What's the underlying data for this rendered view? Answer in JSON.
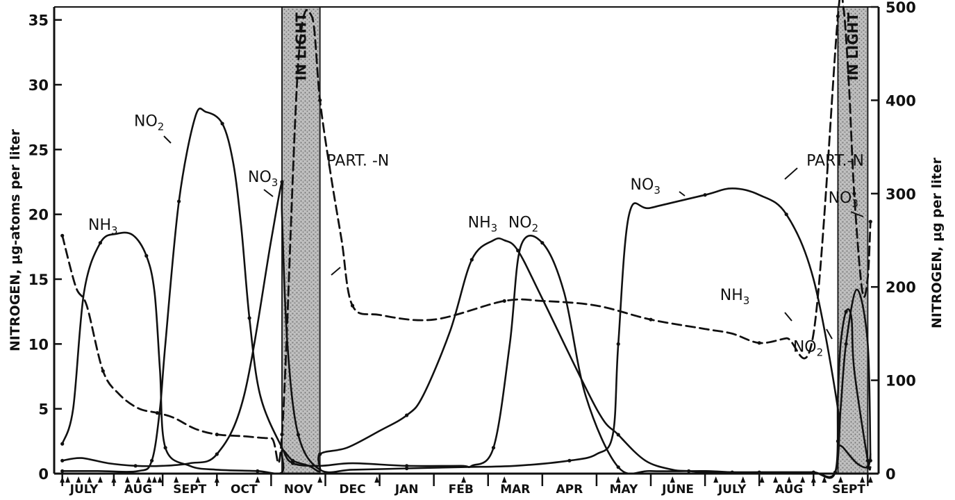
{
  "chart_data": {
    "type": "line",
    "title": "",
    "ylabel_left": "NITROGEN, μg-atoms per liter",
    "ylabel_right": "NITROGEN, μg per liter",
    "ylim_left": [
      0,
      36
    ],
    "ylim_right": [
      0,
      500
    ],
    "yticks_left": [
      0,
      5,
      10,
      15,
      20,
      25,
      30,
      35
    ],
    "yticks_right": [
      0,
      100,
      200,
      300,
      400,
      500
    ],
    "x_range": [
      0,
      15.2
    ],
    "x_month_ticks": [
      0.15,
      1.1,
      2.0,
      3.0,
      4.0,
      5.0,
      6.0,
      7.0,
      8.0,
      9.0,
      10.0,
      11.0,
      12.0,
      13.0,
      14.0,
      15.0
    ],
    "x_months": [
      {
        "label": "JULY",
        "x": 0.55
      },
      {
        "label": "AUG",
        "x": 1.55
      },
      {
        "label": "SEPT",
        "x": 2.5
      },
      {
        "label": "OCT",
        "x": 3.5
      },
      {
        "label": "NOV",
        "x": 4.5
      },
      {
        "label": "DEC",
        "x": 5.5
      },
      {
        "label": "JAN",
        "x": 6.5
      },
      {
        "label": "FEB",
        "x": 7.5
      },
      {
        "label": "MAR",
        "x": 8.5
      },
      {
        "label": "APR",
        "x": 9.5
      },
      {
        "label": "MAY",
        "x": 10.5
      },
      {
        "label": "JUNE",
        "x": 11.5
      },
      {
        "label": "JULY",
        "x": 12.5
      },
      {
        "label": "AUG",
        "x": 13.55
      },
      {
        "label": "SEPT",
        "x": 14.65
      }
    ],
    "sample_markers": [
      0.15,
      0.25,
      0.45,
      0.65,
      0.85,
      1.1,
      1.35,
      1.55,
      1.75,
      1.85,
      1.95,
      2.25,
      2.65,
      3.0,
      3.75,
      4.9,
      5.95,
      7.55,
      8.3,
      10.4,
      11.4,
      12.2,
      12.7,
      13.05,
      13.3,
      13.55,
      13.8,
      14.0,
      14.2,
      14.5,
      14.9,
      15.05
    ],
    "shaded_regions": [
      {
        "label": "IN LIGHT",
        "x0": 4.2,
        "x1": 4.9
      },
      {
        "label": "IN LIGHT",
        "x0": 14.45,
        "x1": 15.0
      }
    ],
    "series": [
      {
        "name": "NH3",
        "axis": "left",
        "style": "solid",
        "label_instances": [
          "NH3",
          "NH3",
          "NH3"
        ],
        "x": [
          0.15,
          0.35,
          0.55,
          0.85,
          1.15,
          1.45,
          1.7,
          1.85,
          1.95,
          2.05,
          2.5,
          3.0,
          3.75,
          4.2,
          4.2,
          4.4,
          4.7,
          4.9,
          4.9,
          5.4,
          6.0,
          6.5,
          6.8,
          7.3,
          7.7,
          8.1,
          8.3,
          8.55,
          9.0,
          10.0,
          10.4,
          10.9,
          11.4,
          11.7,
          12.0,
          12.5,
          13.0,
          13.5,
          14.0,
          14.4,
          14.45,
          14.5,
          14.6,
          14.7,
          14.75,
          15.0,
          15.05
        ],
        "y": [
          2.3,
          5.0,
          14.0,
          17.8,
          18.5,
          18.4,
          16.8,
          14.0,
          8.0,
          2.0,
          0.6,
          0.3,
          0.2,
          0.1,
          1.8,
          1.0,
          0.6,
          0.2,
          1.5,
          2.0,
          3.3,
          4.5,
          6.0,
          11.0,
          16.5,
          18.0,
          18.0,
          17.2,
          13.5,
          5.0,
          3.0,
          1.0,
          0.3,
          0.2,
          0.1,
          0.1,
          0.1,
          0.1,
          0.1,
          0.1,
          6.0,
          10.0,
          12.5,
          12.0,
          8.0,
          1.0,
          0.5
        ]
      },
      {
        "name": "NO2",
        "axis": "left",
        "style": "solid",
        "label_instances": [
          "NO2",
          "NO2",
          "NO2"
        ],
        "x": [
          0.15,
          0.8,
          1.55,
          1.8,
          1.95,
          2.05,
          2.3,
          2.6,
          2.8,
          3.1,
          3.3,
          3.45,
          3.6,
          3.8,
          4.2,
          4.4,
          4.9,
          5.5,
          6.5,
          7.5,
          7.7,
          8.1,
          8.4,
          8.6,
          9.0,
          9.4,
          9.8,
          10.4,
          11.0,
          12.0,
          12.5,
          13.0,
          13.5,
          14.0,
          14.4,
          14.5,
          14.6,
          14.8,
          15.0,
          15.05
        ],
        "y": [
          0.2,
          0.2,
          0.2,
          1.0,
          5.0,
          10.0,
          21.0,
          27.5,
          27.9,
          27.0,
          24.0,
          19.0,
          12.0,
          6.0,
          2.0,
          0.8,
          0.6,
          0.8,
          0.6,
          0.6,
          0.6,
          2.0,
          10.0,
          17.5,
          17.8,
          14.0,
          6.0,
          0.5,
          0.2,
          0.2,
          0.1,
          0.1,
          0.1,
          0.1,
          0.1,
          5.0,
          10.0,
          14.2,
          10.0,
          1.0
        ]
      },
      {
        "name": "NO3",
        "axis": "left",
        "style": "solid",
        "label_instances": [
          "NO3",
          "NO3",
          "NO3"
        ],
        "x": [
          0.15,
          0.5,
          1.0,
          1.5,
          2.0,
          2.5,
          3.0,
          3.5,
          4.0,
          4.2,
          4.2,
          4.3,
          4.5,
          4.9,
          5.5,
          6.5,
          7.5,
          8.5,
          9.5,
          10.0,
          10.3,
          10.4,
          10.6,
          11.0,
          12.0,
          12.5,
          13.0,
          13.5,
          14.0,
          14.45,
          14.45,
          14.55,
          14.8,
          15.0,
          15.05
        ],
        "y": [
          1.0,
          1.2,
          0.8,
          0.6,
          0.6,
          0.8,
          1.5,
          6.0,
          18.0,
          22.5,
          20.0,
          10.0,
          3.0,
          0.3,
          0.3,
          0.4,
          0.5,
          0.6,
          1.0,
          1.5,
          3.0,
          10.0,
          20.0,
          20.5,
          21.5,
          22.0,
          21.5,
          20.0,
          15.0,
          5.0,
          2.5,
          2.0,
          0.8,
          0.5,
          1.5
        ]
      },
      {
        "name": "PART.-N",
        "axis": "right",
        "style": "dashed",
        "label_instances": [
          "PART. -N",
          "PART.-N"
        ],
        "x": [
          0.15,
          0.4,
          0.6,
          0.9,
          1.2,
          1.55,
          1.9,
          2.2,
          2.6,
          3.0,
          3.5,
          4.0,
          4.2,
          4.5,
          4.75,
          4.9,
          5.1,
          5.3,
          5.5,
          6.0,
          7.0,
          8.3,
          9.0,
          10.0,
          11.0,
          12.0,
          12.5,
          13.0,
          13.5,
          14.0,
          14.45,
          14.55,
          14.65,
          14.75,
          14.9,
          15.0,
          15.05
        ],
        "y": [
          255,
          200,
          180,
          110,
          85,
          70,
          65,
          60,
          48,
          42,
          40,
          38,
          42,
          440,
          490,
          400,
          320,
          250,
          180,
          170,
          165,
          185,
          185,
          180,
          165,
          155,
          150,
          140,
          145,
          150,
          490,
          500,
          420,
          300,
          195,
          210,
          270
        ]
      }
    ]
  }
}
